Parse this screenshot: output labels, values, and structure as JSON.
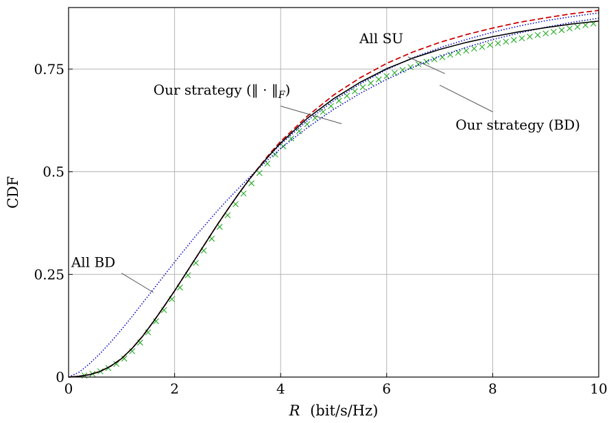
{
  "chart_data": {
    "type": "line",
    "title": "",
    "xlabel_var": "R",
    "xlabel_unit": "(bit/s/Hz)",
    "ylabel": "CDF",
    "xlim": [
      0,
      10
    ],
    "ylim": [
      0,
      0.9
    ],
    "xticks": [
      0,
      2,
      4,
      6,
      8,
      10
    ],
    "xtick_labels": [
      "0",
      "2",
      "4",
      "6",
      "8",
      "10"
    ],
    "yticks": [
      0,
      0.25,
      0.5,
      0.75
    ],
    "ytick_labels": [
      "0",
      "0.25",
      "0.5",
      "0.75"
    ],
    "grid": true,
    "legend": "none",
    "series": [
      {
        "key": "all-su",
        "color": "#cc0000",
        "style": "dashed",
        "x": [
          0,
          0.2,
          0.4,
          0.6,
          0.8,
          1.0,
          1.2,
          1.4,
          1.6,
          1.8,
          2.0,
          2.2,
          2.4,
          2.6,
          2.8,
          3.0,
          3.2,
          3.4,
          3.6,
          3.8,
          4.0,
          4.5,
          5.0,
          5.5,
          6.0,
          6.5,
          7.0,
          7.5,
          8.0,
          8.5,
          9.0,
          9.5,
          10.0
        ],
        "y": [
          0,
          0.002,
          0.006,
          0.014,
          0.027,
          0.045,
          0.07,
          0.1,
          0.135,
          0.172,
          0.21,
          0.25,
          0.29,
          0.33,
          0.37,
          0.408,
          0.445,
          0.48,
          0.513,
          0.545,
          0.574,
          0.635,
          0.687,
          0.729,
          0.764,
          0.792,
          0.815,
          0.834,
          0.85,
          0.864,
          0.875,
          0.885,
          0.893
        ]
      },
      {
        "key": "our-strategy-frobenius",
        "color": "#0000cc",
        "style": "dotted",
        "x": [
          0,
          0.2,
          0.4,
          0.6,
          0.8,
          1.0,
          1.2,
          1.4,
          1.6,
          1.8,
          2.0,
          2.2,
          2.4,
          2.6,
          2.8,
          3.0,
          3.2,
          3.4,
          3.6,
          3.8,
          4.0,
          4.5,
          5.0,
          5.5,
          6.0,
          6.5,
          7.0,
          7.5,
          8.0,
          8.5,
          9.0,
          9.5,
          10.0
        ],
        "y": [
          0,
          0.002,
          0.006,
          0.014,
          0.027,
          0.045,
          0.07,
          0.1,
          0.135,
          0.172,
          0.21,
          0.25,
          0.29,
          0.33,
          0.37,
          0.408,
          0.445,
          0.48,
          0.512,
          0.541,
          0.567,
          0.624,
          0.673,
          0.714,
          0.749,
          0.778,
          0.802,
          0.822,
          0.84,
          0.855,
          0.868,
          0.878,
          0.887
        ]
      },
      {
        "key": "all-bd",
        "color": "#0000cc",
        "style": "dotted",
        "x": [
          0,
          0.2,
          0.4,
          0.6,
          0.8,
          1.0,
          1.2,
          1.4,
          1.6,
          1.8,
          2.0,
          2.2,
          2.4,
          2.6,
          2.8,
          3.0,
          3.2,
          3.4,
          3.6,
          3.8,
          4.0,
          4.5,
          5.0,
          5.5,
          6.0,
          6.5,
          7.0,
          7.5,
          8.0,
          8.5,
          9.0,
          9.5,
          10.0
        ],
        "y": [
          0,
          0.012,
          0.033,
          0.058,
          0.086,
          0.116,
          0.148,
          0.181,
          0.214,
          0.247,
          0.28,
          0.312,
          0.344,
          0.374,
          0.404,
          0.432,
          0.459,
          0.485,
          0.51,
          0.534,
          0.557,
          0.607,
          0.652,
          0.691,
          0.725,
          0.755,
          0.781,
          0.803,
          0.822,
          0.838,
          0.852,
          0.864,
          0.874
        ]
      },
      {
        "key": "our-strategy-bd",
        "color": "#000000",
        "style": "solid",
        "x": [
          0,
          0.2,
          0.4,
          0.6,
          0.8,
          1.0,
          1.2,
          1.4,
          1.6,
          1.8,
          2.0,
          2.2,
          2.4,
          2.6,
          2.8,
          3.0,
          3.2,
          3.4,
          3.6,
          3.8,
          4.0,
          4.5,
          5.0,
          5.5,
          6.0,
          6.5,
          7.0,
          7.5,
          8.0,
          8.5,
          9.0,
          9.5,
          10.0
        ],
        "y": [
          0,
          0.002,
          0.006,
          0.014,
          0.027,
          0.045,
          0.07,
          0.1,
          0.135,
          0.172,
          0.21,
          0.25,
          0.29,
          0.33,
          0.37,
          0.408,
          0.445,
          0.48,
          0.512,
          0.542,
          0.57,
          0.63,
          0.678,
          0.718,
          0.751,
          0.777,
          0.798,
          0.815,
          0.829,
          0.841,
          0.851,
          0.86,
          0.867
        ]
      },
      {
        "key": "simulation-markers",
        "color": "#22aa22",
        "style": "markers-x",
        "x": [
          0.3,
          0.45,
          0.6,
          0.75,
          0.9,
          1.05,
          1.2,
          1.35,
          1.5,
          1.65,
          1.8,
          1.95,
          2.1,
          2.25,
          2.4,
          2.55,
          2.7,
          2.85,
          3.0,
          3.15,
          3.3,
          3.45,
          3.6,
          3.75,
          3.9,
          4.05,
          4.2,
          4.35,
          4.5,
          4.65,
          4.8,
          4.95,
          5.1,
          5.25,
          5.4,
          5.55,
          5.7,
          5.85,
          6.0,
          6.15,
          6.3,
          6.45,
          6.6,
          6.75,
          6.9,
          7.05,
          7.2,
          7.35,
          7.5,
          7.65,
          7.8,
          7.95,
          8.1,
          8.25,
          8.4,
          8.55,
          8.7,
          8.85,
          9.0,
          9.15,
          9.3,
          9.45,
          9.6,
          9.75,
          9.9
        ],
        "y": [
          0.004,
          0.008,
          0.014,
          0.022,
          0.032,
          0.045,
          0.063,
          0.084,
          0.109,
          0.136,
          0.163,
          0.19,
          0.218,
          0.248,
          0.278,
          0.308,
          0.337,
          0.366,
          0.394,
          0.421,
          0.447,
          0.472,
          0.497,
          0.52,
          0.542,
          0.562,
          0.581,
          0.599,
          0.616,
          0.631,
          0.646,
          0.66,
          0.673,
          0.685,
          0.696,
          0.706,
          0.716,
          0.725,
          0.733,
          0.741,
          0.748,
          0.755,
          0.762,
          0.768,
          0.774,
          0.779,
          0.785,
          0.79,
          0.795,
          0.8,
          0.804,
          0.809,
          0.813,
          0.817,
          0.821,
          0.825,
          0.829,
          0.833,
          0.837,
          0.841,
          0.845,
          0.849,
          0.853,
          0.857,
          0.861
        ]
      }
    ],
    "annotations": [
      {
        "key": "all-su",
        "text": "All SU",
        "text_x": 5.9,
        "text_y": 0.813,
        "anchor": "middle",
        "leader": [
          [
            6.4,
            0.78
          ],
          [
            7.1,
            0.739
          ]
        ]
      },
      {
        "key": "our-strategy-frobenius",
        "text": "Our strategy (‖ · ‖",
        "sub": "F",
        "close": ")",
        "text_x": 1.6,
        "text_y": 0.688,
        "anchor": "start",
        "leader": [
          [
            4.0,
            0.66
          ],
          [
            5.15,
            0.617
          ]
        ]
      },
      {
        "key": "our-strategy-bd",
        "text": "Our strategy (BD)",
        "text_x": 7.3,
        "text_y": 0.603,
        "anchor": "start",
        "leader": [
          [
            7.0,
            0.711
          ],
          [
            8.0,
            0.646
          ]
        ]
      },
      {
        "key": "all-bd",
        "text": "All BD",
        "text_x": 0.05,
        "text_y": 0.268,
        "anchor": "start",
        "leader": [
          [
            1.0,
            0.253
          ],
          [
            1.6,
            0.206
          ]
        ]
      }
    ]
  }
}
